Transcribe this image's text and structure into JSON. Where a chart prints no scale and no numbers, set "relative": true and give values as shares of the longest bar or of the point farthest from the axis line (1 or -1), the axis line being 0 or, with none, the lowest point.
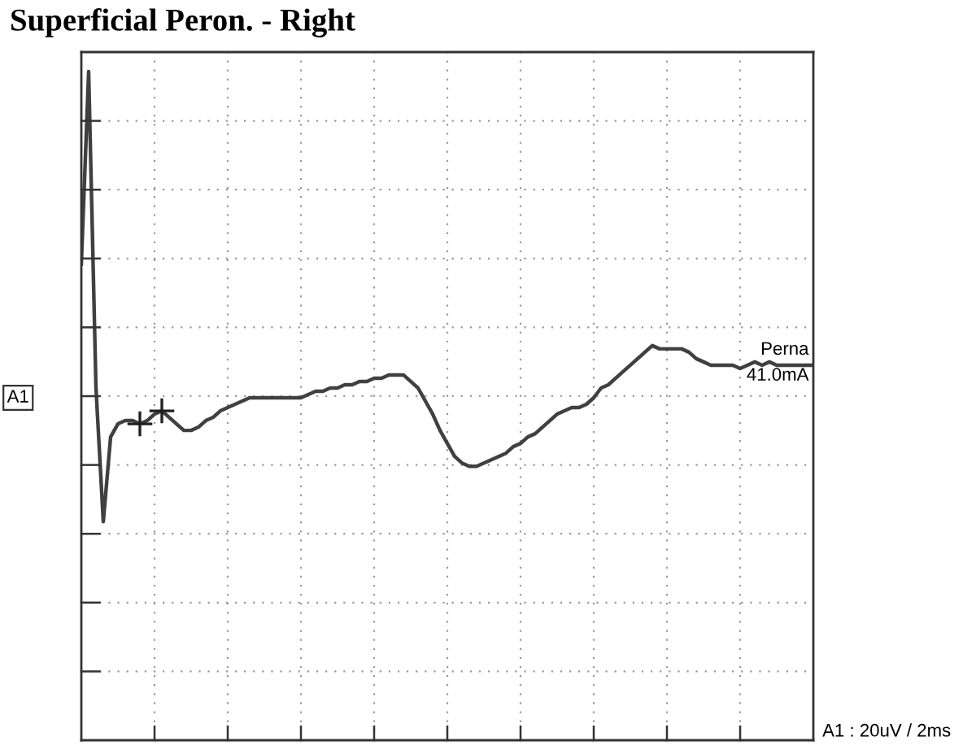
{
  "chart_data": {
    "type": "line",
    "title": "Superficial Peron. - Right",
    "relative": true,
    "grid": true,
    "categories": [
      null,
      null,
      null,
      null,
      null,
      null,
      null,
      null,
      null,
      null,
      null,
      null,
      null,
      null,
      null,
      null,
      null,
      null,
      null,
      null,
      null,
      null,
      null,
      null,
      null,
      null,
      null,
      null,
      null,
      null,
      null,
      null,
      null,
      null,
      null,
      null,
      null,
      null,
      null,
      null,
      null,
      null,
      null,
      null,
      null,
      null,
      null,
      null,
      null,
      null,
      null,
      null,
      null,
      null,
      null,
      null,
      null,
      null,
      null,
      null,
      null,
      null,
      null,
      null,
      null,
      null,
      null,
      null,
      null,
      null,
      null,
      null,
      null,
      null,
      null,
      null,
      null,
      null,
      null,
      null,
      null,
      null,
      null,
      null,
      null,
      null,
      null,
      null,
      null,
      null,
      null,
      null,
      null,
      null,
      null,
      null,
      null,
      null,
      null,
      null,
      null
    ],
    "series": [
      {
        "color": "#404040",
        "values": [
          0.41,
          1.0,
          0.03,
          -0.38,
          -0.12,
          -0.08,
          -0.07,
          -0.07,
          -0.08,
          -0.07,
          -0.05,
          -0.04,
          -0.06,
          -0.08,
          -0.1,
          -0.1,
          -0.09,
          -0.07,
          -0.06,
          -0.04,
          -0.03,
          -0.02,
          -0.01,
          0.0,
          0.0,
          0.0,
          0.0,
          0.0,
          0.0,
          0.0,
          0.0,
          0.01,
          0.02,
          0.02,
          0.03,
          0.03,
          0.04,
          0.04,
          0.05,
          0.05,
          0.06,
          0.06,
          0.07,
          0.07,
          0.07,
          0.05,
          0.03,
          -0.01,
          -0.05,
          -0.1,
          -0.14,
          -0.18,
          -0.2,
          -0.21,
          -0.21,
          -0.2,
          -0.19,
          -0.18,
          -0.17,
          -0.15,
          -0.14,
          -0.12,
          -0.11,
          -0.09,
          -0.07,
          -0.05,
          -0.04,
          -0.03,
          -0.03,
          -0.02,
          0.0,
          0.03,
          0.04,
          0.06,
          0.08,
          0.1,
          0.12,
          0.14,
          0.16,
          0.15,
          0.15,
          0.15,
          0.15,
          0.14,
          0.12,
          0.11,
          0.1,
          0.1,
          0.1,
          0.1,
          0.09,
          0.1,
          0.11,
          0.1,
          0.11,
          0.1,
          0.1,
          0.1,
          0.1,
          0.1,
          0.1
        ]
      }
    ],
    "annotations": [
      "A1",
      "Perna",
      "41.0mA",
      "A1 : 20uV / 2ms"
    ]
  }
}
